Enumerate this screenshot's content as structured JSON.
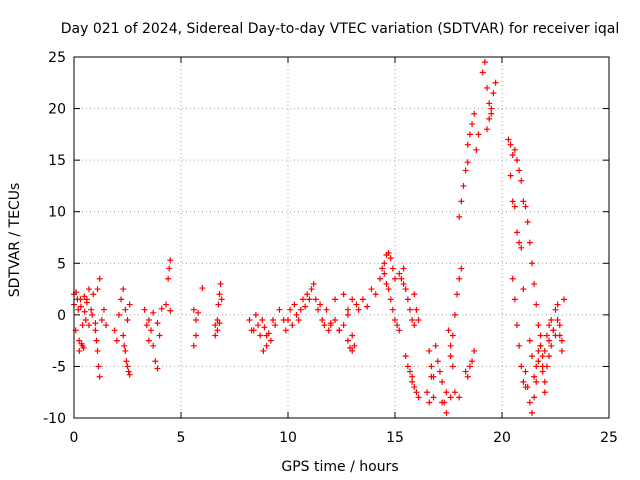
{
  "chart_data": {
    "type": "scatter",
    "title": "Day 021 of 2024, Sidereal Day-to-day VTEC variation (SDTVAR) for receiver iqal",
    "xlabel": "GPS time / hours",
    "ylabel": "SDTVAR / TECUs",
    "xlim": [
      0,
      25
    ],
    "ylim": [
      -10,
      25
    ],
    "xticks": [
      0,
      5,
      10,
      15,
      20,
      25
    ],
    "yticks": [
      -10,
      -5,
      0,
      5,
      10,
      15,
      20,
      25
    ],
    "grid": true,
    "marker": "+",
    "color": "#ff0000",
    "series": [
      {
        "name": "SDTVAR",
        "segments": [
          {
            "x": [
              0.0,
              0.08,
              0.16,
              0.24,
              0.32,
              0.4,
              0.48,
              0.55
            ],
            "y": [
              2.0,
              -1.5,
              1.5,
              -2.5,
              0.8,
              -3.0,
              1.8,
              -0.5
            ]
          },
          {
            "x": [
              0.0,
              0.1,
              0.2,
              0.3,
              0.4,
              0.5,
              0.6
            ],
            "y": [
              1.0,
              2.2,
              0.5,
              1.5,
              -1.0,
              0.3,
              1.2
            ]
          },
          {
            "x": [
              0.25,
              0.35,
              0.45
            ],
            "y": [
              -3.5,
              -2.8,
              -3.2
            ]
          },
          {
            "x": [
              0.6,
              0.7,
              0.8,
              0.9
            ],
            "y": [
              1.5,
              2.5,
              0.5,
              2.0
            ]
          },
          {
            "x": [
              0.7,
              0.85,
              1.0,
              1.1,
              1.2
            ],
            "y": [
              -1.0,
              0.0,
              -0.8,
              2.5,
              3.5
            ]
          },
          {
            "x": [
              1.0,
              1.05,
              1.1,
              1.15,
              1.2
            ],
            "y": [
              -1.5,
              -2.5,
              -3.5,
              -5.0,
              -6.0
            ]
          },
          {
            "x": [
              1.3,
              1.4,
              1.5
            ],
            "y": [
              -0.5,
              0.5,
              -1.0
            ]
          },
          {
            "x": [
              1.9,
              2.0,
              2.1,
              2.2,
              2.3
            ],
            "y": [
              -1.5,
              -2.5,
              0.0,
              1.5,
              2.5
            ]
          },
          {
            "x": [
              2.3,
              2.35,
              2.4,
              2.45,
              2.5,
              2.55,
              2.6
            ],
            "y": [
              -2.0,
              -3.0,
              -3.5,
              -4.5,
              -5.0,
              -5.5,
              -5.8
            ]
          },
          {
            "x": [
              2.4,
              2.5,
              2.6
            ],
            "y": [
              0.5,
              -0.5,
              1.0
            ]
          },
          {
            "x": [
              3.3,
              3.4,
              3.5,
              3.6,
              3.7,
              3.8,
              3.9,
              4.0
            ],
            "y": [
              0.5,
              -1.0,
              -2.5,
              -1.5,
              -3.0,
              -4.5,
              -5.2,
              -2.0
            ]
          },
          {
            "x": [
              3.5,
              3.7,
              3.9,
              4.1,
              4.3,
              4.5
            ],
            "y": [
              -0.5,
              0.2,
              -0.8,
              0.6,
              1.0,
              0.4
            ]
          },
          {
            "x": [
              4.4,
              4.45,
              4.5
            ],
            "y": [
              3.5,
              4.5,
              5.3
            ]
          },
          {
            "x": [
              5.6,
              5.7
            ],
            "y": [
              -3.0,
              -2.0
            ]
          },
          {
            "x": [
              5.6,
              5.7,
              5.8
            ],
            "y": [
              0.5,
              -0.5,
              0.2
            ]
          },
          {
            "x": [
              6.0
            ],
            "y": [
              2.6
            ]
          },
          {
            "x": [
              6.6,
              6.7,
              6.75,
              6.8,
              6.85,
              6.9
            ],
            "y": [
              -1.0,
              -0.5,
              1.0,
              2.0,
              3.0,
              1.5
            ]
          },
          {
            "x": [
              6.6,
              6.7,
              6.8
            ],
            "y": [
              -2.0,
              -1.5,
              -0.8
            ]
          },
          {
            "x": [
              8.2,
              8.4,
              8.6,
              8.8,
              9.0,
              9.2,
              9.4,
              9.6,
              9.8
            ],
            "y": [
              -0.5,
              -1.5,
              -1.0,
              -0.5,
              -2.0,
              -2.5,
              -1.0,
              0.5,
              -0.5
            ]
          },
          {
            "x": [
              8.3,
              8.5,
              8.7,
              8.9,
              9.1,
              9.3
            ],
            "y": [
              -1.5,
              0.0,
              -2.0,
              -1.2,
              -1.8,
              -0.5
            ]
          },
          {
            "x": [
              8.85,
              9.0
            ],
            "y": [
              -3.5,
              -3.0
            ]
          },
          {
            "x": [
              9.9,
              10.1,
              10.3,
              10.5,
              10.7,
              10.9
            ],
            "y": [
              -1.5,
              0.5,
              1.0,
              -0.5,
              1.5,
              2.0
            ]
          },
          {
            "x": [
              10.0,
              10.2,
              10.4,
              10.6,
              10.8,
              11.0
            ],
            "y": [
              -0.5,
              -1.0,
              0.0,
              0.5,
              0.8,
              1.5
            ]
          },
          {
            "x": [
              11.1,
              11.2,
              11.3
            ],
            "y": [
              2.5,
              3.0,
              1.5
            ]
          },
          {
            "x": [
              11.4,
              11.5,
              11.6,
              11.7,
              11.8,
              11.9,
              12.0
            ],
            "y": [
              0.5,
              1.0,
              -0.5,
              -1.0,
              0.5,
              -1.5,
              -0.8
            ]
          },
          {
            "x": [
              12.0,
              12.2,
              12.4,
              12.6,
              12.8,
              13.0,
              13.2
            ],
            "y": [
              -1.0,
              1.5,
              -1.5,
              2.0,
              0.5,
              -2.0,
              1.0
            ]
          },
          {
            "x": [
              12.2,
              12.4,
              12.6,
              12.8,
              13.0
            ],
            "y": [
              -0.5,
              -1.5,
              -1.0,
              0.0,
              1.5
            ]
          },
          {
            "x": [
              12.8,
              12.9,
              13.0,
              13.1
            ],
            "y": [
              -2.5,
              -3.2,
              -3.5,
              -3.0
            ]
          },
          {
            "x": [
              13.3,
              13.5,
              13.7,
              13.9,
              14.1,
              14.3,
              14.5
            ],
            "y": [
              0.5,
              1.5,
              0.8,
              2.5,
              2.0,
              3.5,
              4.0
            ]
          },
          {
            "x": [
              14.4,
              14.5,
              14.6,
              14.7,
              14.8,
              14.9,
              15.0,
              15.2,
              15.4
            ],
            "y": [
              4.5,
              5.0,
              5.8,
              6.0,
              5.5,
              4.5,
              3.5,
              4.0,
              4.5
            ]
          },
          {
            "x": [
              14.6,
              14.7,
              14.8,
              14.9,
              15.0,
              15.1,
              15.2
            ],
            "y": [
              3.0,
              2.5,
              1.5,
              0.5,
              -0.5,
              -1.0,
              -1.5
            ]
          },
          {
            "x": [
              15.3,
              15.4,
              15.5,
              15.6,
              15.7,
              15.8,
              15.9
            ],
            "y": [
              3.5,
              3.0,
              2.5,
              1.5,
              0.5,
              -0.5,
              -1.0
            ]
          },
          {
            "x": [
              15.5,
              15.6,
              15.7,
              15.8
            ],
            "y": [
              -4.0,
              -5.0,
              -5.5,
              -6.0
            ]
          },
          {
            "x": [
              15.8,
              15.9,
              16.0,
              16.1
            ],
            "y": [
              -6.5,
              -7.0,
              -7.5,
              -8.0
            ]
          },
          {
            "x": [
              15.9,
              16.0,
              16.1
            ],
            "y": [
              2.0,
              0.5,
              -0.5
            ]
          },
          {
            "x": [
              16.5,
              16.6,
              16.7,
              16.8,
              16.9,
              17.0,
              17.1,
              17.2,
              17.3,
              17.4
            ],
            "y": [
              -7.5,
              -8.5,
              -6.0,
              -8.0,
              -3.0,
              -4.5,
              -5.5,
              -6.5,
              -8.5,
              -9.5
            ]
          },
          {
            "x": [
              16.6,
              16.7,
              16.8
            ],
            "y": [
              -3.5,
              -5.0,
              -6.0
            ]
          },
          {
            "x": [
              17.2,
              17.4,
              17.6,
              17.8,
              18.0
            ],
            "y": [
              -8.5,
              -7.5,
              -8.0,
              -7.5,
              -8.0
            ]
          },
          {
            "x": [
              17.6,
              17.7,
              17.8,
              17.9,
              18.0,
              18.1
            ],
            "y": [
              -4.0,
              -2.0,
              0.0,
              2.0,
              3.5,
              4.5
            ]
          },
          {
            "x": [
              17.5,
              17.6,
              17.7
            ],
            "y": [
              -1.5,
              -3.0,
              -5.0
            ]
          },
          {
            "x": [
              18.0,
              18.1,
              18.2,
              18.3,
              18.4
            ],
            "y": [
              9.5,
              11.0,
              12.5,
              14.0,
              14.8
            ]
          },
          {
            "x": [
              18.4,
              18.5,
              18.6,
              18.7,
              18.8,
              18.9
            ],
            "y": [
              16.5,
              17.5,
              18.5,
              19.5,
              16.0,
              17.5
            ]
          },
          {
            "x": [
              18.3,
              18.4,
              18.5,
              18.6,
              18.7
            ],
            "y": [
              -5.5,
              -6.0,
              -5.0,
              -4.5,
              -3.5
            ]
          },
          {
            "x": [
              19.1,
              19.2,
              19.3,
              19.4,
              19.5,
              19.6,
              19.7
            ],
            "y": [
              23.5,
              24.5,
              22.0,
              20.5,
              19.5,
              21.5,
              22.5
            ]
          },
          {
            "x": [
              19.3,
              19.4,
              19.5
            ],
            "y": [
              18.0,
              19.0,
              20.0
            ]
          },
          {
            "x": [
              20.3,
              20.4,
              20.5,
              20.6,
              20.7,
              20.8,
              20.9
            ],
            "y": [
              17.0,
              16.5,
              15.5,
              16.0,
              15.0,
              14.0,
              13.0
            ]
          },
          {
            "x": [
              20.4,
              20.5,
              20.6
            ],
            "y": [
              13.5,
              11.0,
              10.5
            ]
          },
          {
            "x": [
              20.5,
              20.6,
              20.7,
              20.8,
              20.9,
              21.0,
              21.1
            ],
            "y": [
              3.5,
              1.5,
              -1.0,
              -3.0,
              -5.0,
              -6.5,
              -7.0
            ]
          },
          {
            "x": [
              20.7,
              20.8,
              20.9,
              21.0
            ],
            "y": [
              8.0,
              7.0,
              6.5,
              2.5
            ]
          },
          {
            "x": [
              21.0,
              21.1,
              21.2,
              21.3,
              21.4,
              21.5,
              21.6,
              21.7,
              21.8,
              21.9
            ],
            "y": [
              11.0,
              10.5,
              9.0,
              7.0,
              5.0,
              3.0,
              1.0,
              -1.0,
              -3.0,
              -5.0
            ]
          },
          {
            "x": [
              21.1,
              21.2,
              21.3,
              21.4,
              21.5,
              21.6,
              21.7,
              21.8,
              21.9,
              22.0
            ],
            "y": [
              -5.5,
              -7.0,
              -8.5,
              -9.5,
              -8.0,
              -6.5,
              -4.5,
              -3.0,
              -5.5,
              -7.5
            ]
          },
          {
            "x": [
              21.3,
              21.4,
              21.5,
              21.6,
              21.7,
              21.8,
              21.9,
              22.0,
              22.1,
              22.2
            ],
            "y": [
              -2.5,
              -4.0,
              -6.0,
              -5.0,
              -3.5,
              -2.0,
              -4.0,
              -6.5,
              -5.0,
              -4.0
            ]
          },
          {
            "x": [
              22.0,
              22.1,
              22.2,
              22.3,
              22.4,
              22.5,
              22.6,
              22.7,
              22.8,
              22.9
            ],
            "y": [
              -3.5,
              -2.0,
              -1.0,
              -0.5,
              -1.5,
              0.5,
              1.0,
              -2.0,
              -3.5,
              1.5
            ]
          },
          {
            "x": [
              22.2,
              22.3,
              22.4,
              22.5,
              22.6,
              22.7,
              22.8
            ],
            "y": [
              -2.5,
              -3.0,
              -1.5,
              -2.0,
              -0.5,
              -1.0,
              -2.5
            ]
          }
        ]
      }
    ]
  }
}
